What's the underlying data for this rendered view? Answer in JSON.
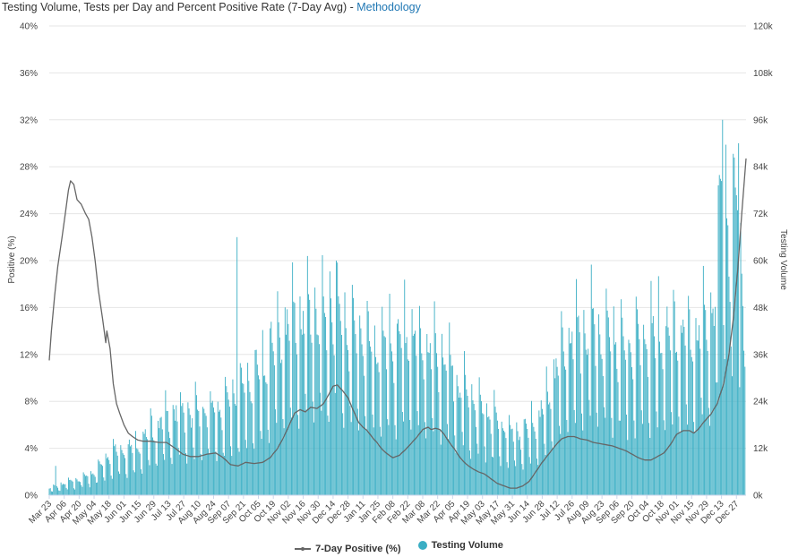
{
  "header": {
    "title": "Testing Volume, Tests per Day and Percent Positive Rate (7-Day Avg)",
    "separator": " - ",
    "link_label": "Methodology"
  },
  "colors": {
    "bars": "#3aaec4",
    "line": "#666666",
    "grid": "#e6e6e6"
  },
  "legend": {
    "line_label": "7-Day Positive (%)",
    "bars_label": "Testing Volume"
  },
  "chart_data": {
    "type": "bar+line",
    "title": "Testing Volume, Tests per Day and Percent Positive Rate (7-Day Avg)",
    "ylabel_left": "Positive (%)",
    "ylabel_right": "Testing Volume",
    "ylim_left": [
      0,
      40
    ],
    "ylim_right": [
      0,
      120000
    ],
    "left_ticks": [
      "0%",
      "4%",
      "8%",
      "12%",
      "16%",
      "20%",
      "24%",
      "28%",
      "32%",
      "36%",
      "40%"
    ],
    "right_ticks": [
      "0k",
      "12k",
      "24k",
      "36k",
      "48k",
      "60k",
      "72k",
      "84k",
      "96k",
      "108k",
      "120k"
    ],
    "x_tick_labels": [
      "Mar 23",
      "Apr 06",
      "Apr 20",
      "May 04",
      "May 18",
      "Jun 01",
      "Jun 15",
      "Jun 29",
      "Jul 13",
      "Jul 27",
      "Aug 10",
      "Aug 24",
      "Sep 07",
      "Sep 21",
      "Oct 05",
      "Oct 19",
      "Nov 02",
      "Nov 16",
      "Nov 30",
      "Dec 14",
      "Dec 28",
      "Jan 11",
      "Jan 25",
      "Feb 08",
      "Feb 22",
      "Mar 08",
      "Mar 22",
      "Apr 05",
      "Apr 19",
      "May 03",
      "May 17",
      "May 31",
      "Jun 14",
      "Jun 28",
      "Jul 12",
      "Jul 26",
      "Aug 09",
      "Aug 23",
      "Sep 06",
      "Sep 20",
      "Oct 04",
      "Oct 18",
      "Nov 01",
      "Nov 15",
      "Nov 29",
      "Dec 13",
      "Dec 27"
    ],
    "x_start_date": "2020-03-23",
    "days_total": 653,
    "series": [
      {
        "name": "7-Day Positive (%)",
        "type": "line",
        "axis": "left",
        "points": [
          [
            0,
            11.5
          ],
          [
            2,
            14
          ],
          [
            5,
            17
          ],
          [
            8,
            19.5
          ],
          [
            12,
            22
          ],
          [
            15,
            24
          ],
          [
            18,
            26
          ],
          [
            20,
            26.8
          ],
          [
            23,
            26.5
          ],
          [
            26,
            25.2
          ],
          [
            30,
            24.8
          ],
          [
            34,
            24
          ],
          [
            37,
            23.5
          ],
          [
            40,
            22
          ],
          [
            43,
            20
          ],
          [
            46,
            17.5
          ],
          [
            50,
            15
          ],
          [
            53,
            13
          ],
          [
            54,
            14
          ],
          [
            57,
            12.5
          ],
          [
            60,
            9.5
          ],
          [
            63,
            7.8
          ],
          [
            66,
            7
          ],
          [
            70,
            6
          ],
          [
            74,
            5.3
          ],
          [
            78,
            5
          ],
          [
            83,
            4.7
          ],
          [
            88,
            4.6
          ],
          [
            95,
            4.6
          ],
          [
            103,
            4.5
          ],
          [
            110,
            4.5
          ],
          [
            118,
            4
          ],
          [
            125,
            3.5
          ],
          [
            132,
            3.3
          ],
          [
            140,
            3.3
          ],
          [
            148,
            3.5
          ],
          [
            156,
            3.6
          ],
          [
            163,
            3.2
          ],
          [
            170,
            2.6
          ],
          [
            177,
            2.5
          ],
          [
            184,
            2.8
          ],
          [
            192,
            2.7
          ],
          [
            200,
            2.8
          ],
          [
            207,
            3.2
          ],
          [
            214,
            4
          ],
          [
            220,
            5
          ],
          [
            225,
            6
          ],
          [
            230,
            7
          ],
          [
            235,
            7.3
          ],
          [
            240,
            7.1
          ],
          [
            245,
            7.5
          ],
          [
            251,
            7.4
          ],
          [
            257,
            7.8
          ],
          [
            262,
            8.6
          ],
          [
            266,
            9.3
          ],
          [
            270,
            9.4
          ],
          [
            275,
            8.9
          ],
          [
            280,
            8.3
          ],
          [
            285,
            7.2
          ],
          [
            290,
            6.2
          ],
          [
            294,
            5.8
          ],
          [
            298,
            5.5
          ],
          [
            303,
            4.9
          ],
          [
            307,
            4.5
          ],
          [
            312,
            3.9
          ],
          [
            317,
            3.5
          ],
          [
            322,
            3.2
          ],
          [
            328,
            3.4
          ],
          [
            334,
            3.9
          ],
          [
            340,
            4.5
          ],
          [
            345,
            5
          ],
          [
            350,
            5.6
          ],
          [
            355,
            5.8
          ],
          [
            358,
            5.6
          ],
          [
            362,
            5.7
          ],
          [
            366,
            5.6
          ],
          [
            370,
            5.2
          ],
          [
            375,
            4.5
          ],
          [
            380,
            3.9
          ],
          [
            385,
            3.2
          ],
          [
            390,
            2.7
          ],
          [
            396,
            2.3
          ],
          [
            402,
            2
          ],
          [
            408,
            1.8
          ],
          [
            414,
            1.4
          ],
          [
            420,
            1
          ],
          [
            426,
            0.8
          ],
          [
            432,
            0.6
          ],
          [
            438,
            0.6
          ],
          [
            444,
            0.8
          ],
          [
            450,
            1.2
          ],
          [
            456,
            2
          ],
          [
            462,
            2.8
          ],
          [
            468,
            3.5
          ],
          [
            474,
            4.2
          ],
          [
            480,
            4.8
          ],
          [
            486,
            5
          ],
          [
            492,
            5
          ],
          [
            498,
            4.8
          ],
          [
            504,
            4.7
          ],
          [
            510,
            4.5
          ],
          [
            516,
            4.4
          ],
          [
            522,
            4.3
          ],
          [
            528,
            4.2
          ],
          [
            534,
            4
          ],
          [
            540,
            3.8
          ],
          [
            546,
            3.5
          ],
          [
            552,
            3.2
          ],
          [
            558,
            3
          ],
          [
            564,
            3
          ],
          [
            570,
            3.3
          ],
          [
            576,
            3.6
          ],
          [
            582,
            4.3
          ],
          [
            588,
            5.2
          ],
          [
            594,
            5.5
          ],
          [
            600,
            5.5
          ],
          [
            604,
            5.3
          ],
          [
            608,
            5.6
          ],
          [
            614,
            6.3
          ],
          [
            620,
            6.9
          ],
          [
            626,
            7.8
          ],
          [
            632,
            9.5
          ],
          [
            637,
            12
          ],
          [
            641,
            15
          ],
          [
            645,
            19
          ],
          [
            649,
            24
          ],
          [
            653,
            28.7
          ]
        ]
      },
      {
        "name": "Testing Volume",
        "type": "bar",
        "axis": "right",
        "pattern": "daily bars with weekly cycle; envelope of weekly peaks in tests/day",
        "peak_envelope": [
          [
            0,
            2000
          ],
          [
            20,
            4000
          ],
          [
            40,
            6000
          ],
          [
            60,
            13000
          ],
          [
            80,
            14000
          ],
          [
            100,
            20000
          ],
          [
            120,
            24000
          ],
          [
            140,
            24000
          ],
          [
            160,
            25000
          ],
          [
            180,
            30000
          ],
          [
            200,
            36000
          ],
          [
            220,
            48000
          ],
          [
            235,
            50000
          ],
          [
            245,
            54000
          ],
          [
            255,
            50000
          ],
          [
            265,
            54000
          ],
          [
            275,
            50000
          ],
          [
            285,
            47000
          ],
          [
            295,
            45000
          ],
          [
            305,
            42000
          ],
          [
            315,
            42000
          ],
          [
            325,
            42000
          ],
          [
            335,
            46000
          ],
          [
            345,
            44000
          ],
          [
            355,
            42000
          ],
          [
            365,
            40000
          ],
          [
            375,
            36000
          ],
          [
            385,
            32000
          ],
          [
            395,
            28000
          ],
          [
            405,
            25000
          ],
          [
            415,
            23000
          ],
          [
            425,
            20000
          ],
          [
            435,
            18000
          ],
          [
            445,
            18000
          ],
          [
            455,
            21000
          ],
          [
            465,
            26000
          ],
          [
            475,
            35000
          ],
          [
            485,
            44000
          ],
          [
            495,
            45000
          ],
          [
            505,
            48000
          ],
          [
            515,
            47000
          ],
          [
            525,
            46000
          ],
          [
            535,
            44000
          ],
          [
            545,
            43000
          ],
          [
            555,
            44000
          ],
          [
            565,
            45000
          ],
          [
            575,
            46000
          ],
          [
            585,
            46000
          ],
          [
            595,
            45000
          ],
          [
            605,
            46000
          ],
          [
            615,
            50000
          ],
          [
            625,
            62000
          ],
          [
            632,
            96000
          ],
          [
            638,
            73000
          ],
          [
            645,
            88000
          ],
          [
            652,
            45000
          ]
        ],
        "notable_values": [
          [
            6,
            7500
          ],
          [
            176,
            66000
          ],
          [
            269,
            60000
          ],
          [
            631,
            96000
          ],
          [
            646,
            90000
          ]
        ]
      }
    ],
    "grid": true,
    "legend_position": "bottom-center"
  }
}
